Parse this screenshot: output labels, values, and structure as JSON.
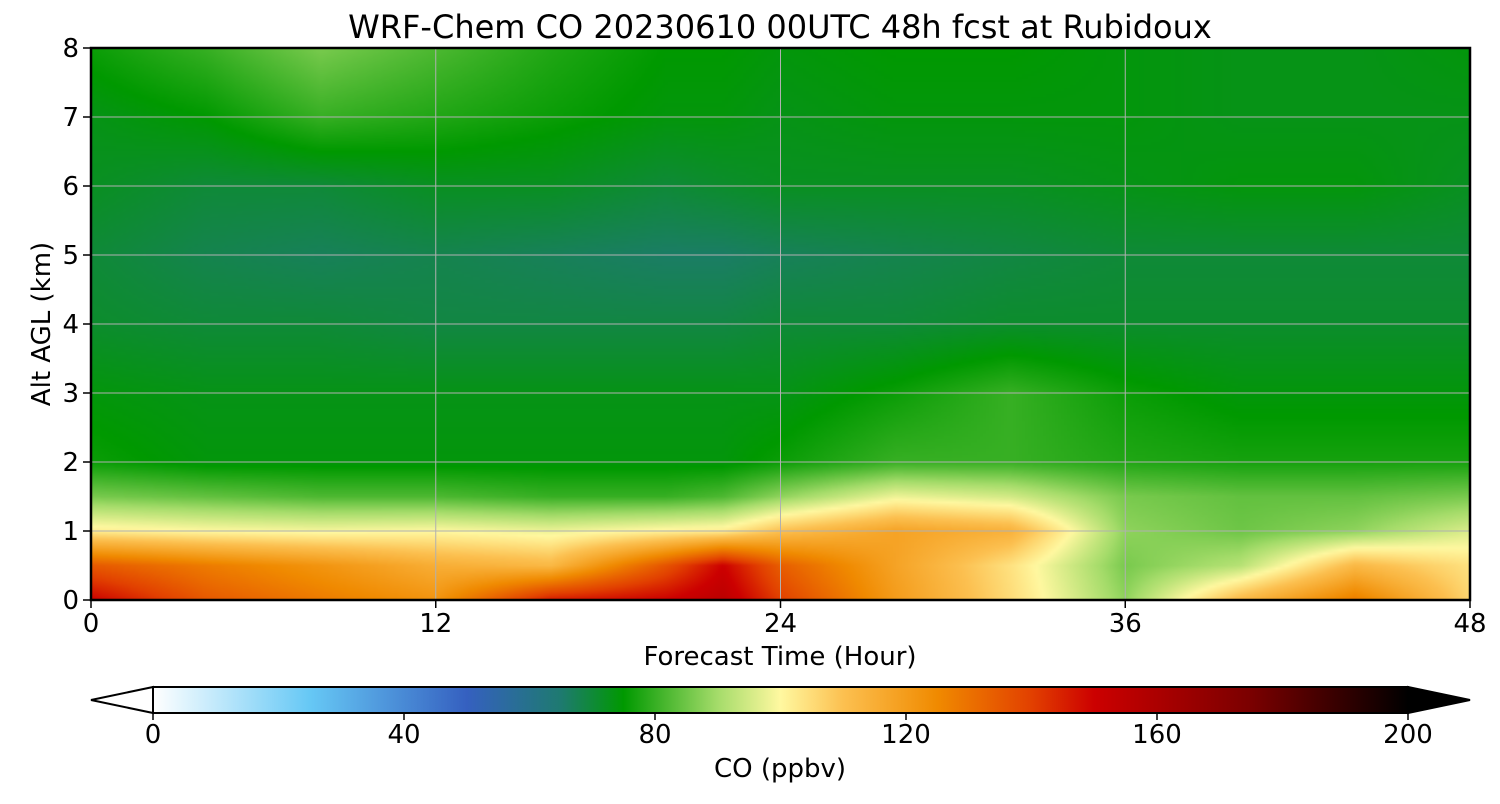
{
  "chart_data": {
    "type": "heatmap",
    "title": "WRF-Chem CO  20230610 00UTC 48h fcst at Rubidoux",
    "xlabel": "Forecast Time (Hour)",
    "ylabel": "Alt AGL (km)",
    "xlim": [
      0,
      48
    ],
    "ylim": [
      0,
      8
    ],
    "xticks": [
      "0",
      "12",
      "24",
      "36",
      "48"
    ],
    "yticks": [
      "0",
      "1",
      "2",
      "3",
      "4",
      "5",
      "6",
      "7",
      "8"
    ],
    "grid": true,
    "colorbar": {
      "label": "CO  (ppbv)",
      "range": [
        0,
        200
      ],
      "ticks": [
        "0",
        "40",
        "80",
        "120",
        "160",
        "200"
      ],
      "extend": "both",
      "stops": [
        {
          "value": 0,
          "color": "#ffffff"
        },
        {
          "value": 25,
          "color": "#66c8f5"
        },
        {
          "value": 50,
          "color": "#3560c0"
        },
        {
          "value": 65,
          "color": "#1e7a70"
        },
        {
          "value": 75,
          "color": "#009900"
        },
        {
          "value": 90,
          "color": "#a5dc6a"
        },
        {
          "value": 100,
          "color": "#fff8a0"
        },
        {
          "value": 110,
          "color": "#fcc050"
        },
        {
          "value": 125,
          "color": "#f08a00"
        },
        {
          "value": 140,
          "color": "#e24000"
        },
        {
          "value": 150,
          "color": "#cc0000"
        },
        {
          "value": 175,
          "color": "#7a0000"
        },
        {
          "value": 200,
          "color": "#000000"
        }
      ]
    },
    "field": {
      "x": [
        0,
        4,
        8,
        12,
        16,
        20,
        22,
        24,
        28,
        32,
        36,
        40,
        44,
        48
      ],
      "z": [
        0,
        0.5,
        1.0,
        1.5,
        2.0,
        3.0,
        4.0,
        5.0,
        6.0,
        7.0,
        8.0
      ],
      "values": [
        [
          150,
          135,
          128,
          122,
          146,
          150,
          155,
          140,
          120,
          105,
          88,
          112,
          128,
          106
        ],
        [
          135,
          128,
          122,
          115,
          112,
          136,
          150,
          134,
          118,
          104,
          86,
          92,
          112,
          104
        ],
        [
          102,
          100,
          99,
          100,
          98,
          101,
          102,
          110,
          118,
          114,
          88,
          85,
          88,
          96
        ],
        [
          86,
          84,
          82,
          82,
          80,
          80,
          82,
          88,
          98,
          95,
          86,
          84,
          84,
          86
        ],
        [
          76,
          74,
          74,
          74,
          74,
          74,
          74,
          76,
          80,
          80,
          78,
          77,
          77,
          77
        ],
        [
          74,
          73,
          73,
          73,
          73,
          73,
          73,
          73,
          76,
          80,
          76,
          74,
          74,
          74
        ],
        [
          71,
          70,
          70,
          69,
          69,
          69,
          69,
          70,
          70,
          71,
          71,
          71,
          71,
          71
        ],
        [
          70,
          68,
          67,
          68,
          67,
          66,
          66,
          67,
          68,
          69,
          70,
          70,
          70,
          70
        ],
        [
          72,
          70,
          70,
          72,
          72,
          70,
          71,
          72,
          72,
          72,
          73,
          74,
          74,
          72
        ],
        [
          73,
          75,
          80,
          78,
          76,
          74,
          74,
          73,
          74,
          74,
          74,
          73,
          73,
          73
        ],
        [
          76,
          80,
          86,
          82,
          78,
          75,
          75,
          74,
          75,
          75,
          74,
          73,
          73,
          74
        ]
      ]
    }
  }
}
